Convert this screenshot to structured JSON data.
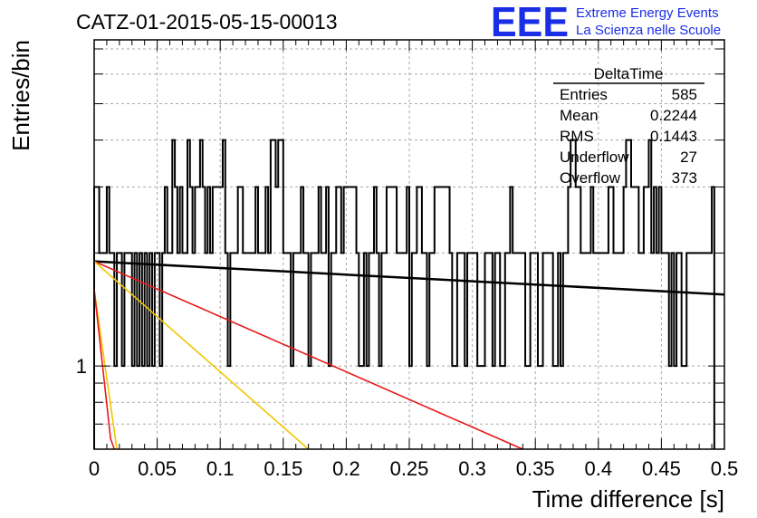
{
  "chart_title": "CATZ-01-2015-05-15-00013",
  "logo": {
    "mark": "EEE",
    "line1": "Extreme Energy Events",
    "line2": "La Scienza nelle Scuole",
    "color": "#1a2ee6"
  },
  "stats_box": {
    "title": "DeltaTime",
    "rows": [
      {
        "label": "Entries",
        "value": "585"
      },
      {
        "label": "Mean",
        "value": "0.2244"
      },
      {
        "label": "RMS",
        "value": "0.1443"
      },
      {
        "label": "Underflow",
        "value": "27"
      },
      {
        "label": "Overflow",
        "value": "373"
      }
    ]
  },
  "chart_data": {
    "type": "histogram",
    "xlabel": "Time difference [s]",
    "ylabel": "Entries/bin",
    "xlim": [
      0,
      0.5
    ],
    "ylog": true,
    "ylim": [
      0.6,
      7.4
    ],
    "grid": true,
    "xticks": [
      {
        "v": 0,
        "label": "0"
      },
      {
        "v": 0.05,
        "label": "0.05"
      },
      {
        "v": 0.1,
        "label": "0.1"
      },
      {
        "v": 0.15,
        "label": "0.15"
      },
      {
        "v": 0.2,
        "label": "0.2"
      },
      {
        "v": 0.25,
        "label": "0.25"
      },
      {
        "v": 0.3,
        "label": "0.3"
      },
      {
        "v": 0.35,
        "label": "0.35"
      },
      {
        "v": 0.4,
        "label": "0.4"
      },
      {
        "v": 0.45,
        "label": "0.45"
      },
      {
        "v": 0.5,
        "label": "0.5"
      }
    ],
    "yticks_labeled": [
      {
        "v": 1,
        "label": "1"
      }
    ],
    "bin_width": 0.002,
    "histogram_counts": [
      3,
      3,
      2,
      2,
      2,
      3,
      2,
      2,
      1,
      2,
      2,
      1,
      2,
      2,
      2,
      1,
      2,
      1,
      2,
      1,
      2,
      1,
      2,
      1,
      2,
      2,
      1,
      2,
      3,
      2,
      2,
      4,
      3,
      2,
      3,
      2,
      2,
      4,
      3,
      2,
      3,
      3,
      4,
      3,
      2,
      3,
      2,
      3,
      3,
      3,
      3,
      4,
      2,
      1,
      2,
      2,
      2,
      3,
      3,
      2,
      2,
      2,
      2,
      2,
      3,
      2,
      2,
      2,
      3,
      2,
      4,
      4,
      3,
      4,
      4,
      2,
      2,
      2,
      1,
      2,
      2,
      2,
      3,
      2,
      2,
      1,
      2,
      2,
      2,
      3,
      2,
      2,
      3,
      1,
      2,
      2,
      3,
      3,
      2,
      3,
      3,
      3,
      3,
      3,
      2,
      1,
      1,
      2,
      1,
      2,
      2,
      3,
      2,
      1,
      2,
      2,
      3,
      3,
      3,
      3,
      2,
      2,
      2,
      2,
      3,
      1,
      2,
      2,
      3,
      3,
      2,
      2,
      1,
      2,
      2,
      3,
      3,
      3,
      3,
      3,
      3,
      2,
      1,
      1,
      2,
      2,
      2,
      1,
      2,
      2,
      2,
      2,
      1,
      1,
      1,
      2,
      2,
      2,
      1,
      2,
      2,
      1,
      1,
      2,
      2,
      3,
      2,
      2,
      2,
      2,
      2,
      1,
      1,
      2,
      2,
      2,
      1,
      1,
      2,
      2,
      2,
      2,
      1,
      1,
      2,
      1,
      2,
      2,
      3,
      4,
      4,
      3,
      3,
      2,
      2,
      2,
      2,
      3,
      2,
      2,
      2,
      2,
      2,
      2,
      3,
      3,
      2,
      2,
      2,
      2,
      3,
      4,
      4,
      3,
      3,
      3,
      2,
      2,
      3,
      3,
      4,
      2,
      3,
      2,
      3,
      2,
      2,
      2,
      1,
      2,
      1,
      2,
      2,
      1,
      1,
      2,
      2,
      2,
      2,
      2,
      2,
      2,
      2,
      2,
      2,
      3
    ],
    "fit_lines": [
      {
        "color": "#000000",
        "points": [
          [
            0.0,
            1.9
          ],
          [
            0.5,
            1.55
          ]
        ]
      },
      {
        "color": "#e41a1c",
        "points": [
          [
            0.0,
            1.9
          ],
          [
            0.34,
            0.6
          ]
        ]
      },
      {
        "color": "#f5c400",
        "points": [
          [
            0.0,
            1.9
          ],
          [
            0.17,
            0.6
          ]
        ]
      },
      {
        "color": "#f5c400",
        "points": [
          [
            0.0,
            1.6
          ],
          [
            0.018,
            0.6
          ]
        ]
      },
      {
        "color": "#e41a1c",
        "points": [
          [
            0.0,
            1.6
          ],
          [
            0.013,
            0.64
          ],
          [
            0.016,
            0.6
          ]
        ]
      }
    ]
  }
}
